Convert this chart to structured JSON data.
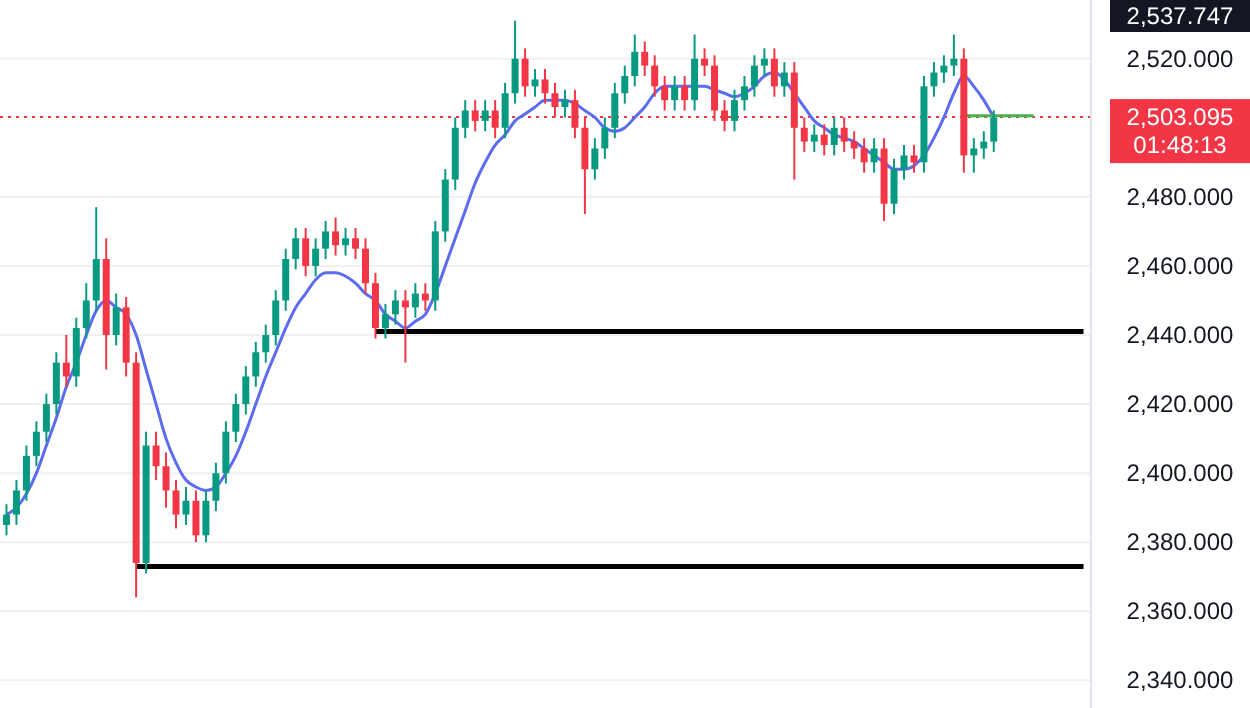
{
  "chart_data": {
    "type": "candlestick",
    "categories": [
      null,
      null,
      null,
      null,
      null,
      null,
      null,
      null,
      null,
      null,
      null,
      null,
      null,
      null,
      null,
      null,
      null,
      null,
      null,
      null,
      null,
      null,
      null,
      null,
      null,
      null,
      null,
      null,
      null,
      null,
      null,
      null,
      null,
      null,
      null,
      null,
      null,
      null,
      null,
      null,
      null,
      null,
      null,
      null,
      null,
      null,
      null,
      null,
      null,
      null,
      null,
      null,
      null,
      null,
      null,
      null,
      null,
      null,
      null,
      null,
      null,
      null,
      null,
      null,
      null,
      null,
      null,
      null,
      null,
      null,
      null,
      null,
      null,
      null,
      null,
      null,
      null,
      null,
      null,
      null,
      null,
      null,
      null,
      null,
      null,
      null,
      null,
      null,
      null,
      null,
      null,
      null,
      null,
      null,
      null,
      null,
      null,
      null,
      null,
      null,
      null,
      null,
      null,
      null,
      null,
      null,
      null,
      null,
      null
    ],
    "ohlc": [
      [
        2385,
        2391,
        2382,
        2388
      ],
      [
        2388,
        2398,
        2385,
        2395
      ],
      [
        2395,
        2408,
        2392,
        2405
      ],
      [
        2405,
        2415,
        2402,
        2412
      ],
      [
        2412,
        2423,
        2409,
        2420
      ],
      [
        2420,
        2435,
        2417,
        2432
      ],
      [
        2432,
        2440,
        2425,
        2428
      ],
      [
        2428,
        2445,
        2425,
        2442
      ],
      [
        2442,
        2455,
        2439,
        2450
      ],
      [
        2450,
        2477,
        2447,
        2462
      ],
      [
        2462,
        2468,
        2430,
        2440
      ],
      [
        2440,
        2452,
        2437,
        2448
      ],
      [
        2448,
        2451,
        2428,
        2432
      ],
      [
        2432,
        2435,
        2364,
        2374
      ],
      [
        2374,
        2412,
        2371,
        2408
      ],
      [
        2408,
        2412,
        2398,
        2402
      ],
      [
        2402,
        2406,
        2390,
        2395
      ],
      [
        2395,
        2398,
        2384,
        2388
      ],
      [
        2388,
        2396,
        2385,
        2392
      ],
      [
        2392,
        2395,
        2380,
        2382
      ],
      [
        2382,
        2395,
        2380,
        2392
      ],
      [
        2392,
        2403,
        2389,
        2400
      ],
      [
        2400,
        2415,
        2397,
        2412
      ],
      [
        2412,
        2423,
        2409,
        2420
      ],
      [
        2420,
        2431,
        2417,
        2428
      ],
      [
        2428,
        2438,
        2425,
        2435
      ],
      [
        2435,
        2443,
        2432,
        2440
      ],
      [
        2440,
        2453,
        2437,
        2450
      ],
      [
        2450,
        2465,
        2447,
        2462
      ],
      [
        2462,
        2471,
        2459,
        2468
      ],
      [
        2468,
        2471,
        2457,
        2460
      ],
      [
        2460,
        2468,
        2457,
        2465
      ],
      [
        2465,
        2473,
        2462,
        2470
      ],
      [
        2470,
        2474,
        2463,
        2466
      ],
      [
        2466,
        2471,
        2463,
        2468
      ],
      [
        2468,
        2471,
        2462,
        2465
      ],
      [
        2465,
        2468,
        2452,
        2455
      ],
      [
        2455,
        2458,
        2439,
        2442
      ],
      [
        2442,
        2449,
        2439,
        2446
      ],
      [
        2446,
        2453,
        2443,
        2450
      ],
      [
        2450,
        2453,
        2432,
        2448
      ],
      [
        2448,
        2455,
        2445,
        2452
      ],
      [
        2452,
        2455,
        2447,
        2450
      ],
      [
        2450,
        2473,
        2447,
        2470
      ],
      [
        2470,
        2488,
        2467,
        2485
      ],
      [
        2485,
        2503,
        2482,
        2500
      ],
      [
        2500,
        2508,
        2497,
        2505
      ],
      [
        2505,
        2508,
        2499,
        2502
      ],
      [
        2502,
        2508,
        2499,
        2505
      ],
      [
        2505,
        2508,
        2497,
        2500
      ],
      [
        2500,
        2513,
        2497,
        2510
      ],
      [
        2510,
        2531,
        2507,
        2520
      ],
      [
        2520,
        2523,
        2509,
        2512
      ],
      [
        2512,
        2517,
        2509,
        2514
      ],
      [
        2514,
        2517,
        2507,
        2510
      ],
      [
        2510,
        2513,
        2503,
        2506
      ],
      [
        2506,
        2511,
        2503,
        2508
      ],
      [
        2508,
        2511,
        2497,
        2500
      ],
      [
        2500,
        2503,
        2475,
        2488
      ],
      [
        2488,
        2497,
        2485,
        2494
      ],
      [
        2494,
        2503,
        2491,
        2500
      ],
      [
        2500,
        2513,
        2497,
        2510
      ],
      [
        2510,
        2518,
        2507,
        2515
      ],
      [
        2515,
        2527,
        2512,
        2522
      ],
      [
        2522,
        2525,
        2515,
        2518
      ],
      [
        2518,
        2521,
        2509,
        2512
      ],
      [
        2512,
        2515,
        2505,
        2508
      ],
      [
        2508,
        2515,
        2505,
        2512
      ],
      [
        2512,
        2515,
        2505,
        2508
      ],
      [
        2508,
        2527,
        2505,
        2520
      ],
      [
        2520,
        2523,
        2515,
        2518
      ],
      [
        2518,
        2521,
        2502,
        2505
      ],
      [
        2505,
        2508,
        2499,
        2502
      ],
      [
        2502,
        2511,
        2499,
        2508
      ],
      [
        2508,
        2515,
        2505,
        2512
      ],
      [
        2512,
        2521,
        2509,
        2518
      ],
      [
        2518,
        2523,
        2515,
        2520
      ],
      [
        2520,
        2523,
        2509,
        2512
      ],
      [
        2512,
        2519,
        2509,
        2516
      ],
      [
        2516,
        2519,
        2485,
        2500
      ],
      [
        2500,
        2503,
        2493,
        2496
      ],
      [
        2496,
        2501,
        2493,
        2498
      ],
      [
        2498,
        2501,
        2492,
        2495
      ],
      [
        2495,
        2503,
        2492,
        2500
      ],
      [
        2500,
        2503,
        2493,
        2496
      ],
      [
        2496,
        2499,
        2491,
        2494
      ],
      [
        2494,
        2497,
        2487,
        2490
      ],
      [
        2490,
        2497,
        2487,
        2494
      ],
      [
        2494,
        2497,
        2473,
        2478
      ],
      [
        2478,
        2491,
        2475,
        2488
      ],
      [
        2488,
        2495,
        2485,
        2492
      ],
      [
        2492,
        2495,
        2487,
        2490
      ],
      [
        2490,
        2515,
        2487,
        2512
      ],
      [
        2512,
        2519,
        2509,
        2516
      ],
      [
        2516,
        2521,
        2513,
        2518
      ],
      [
        2518,
        2527,
        2515,
        2520
      ],
      [
        2520,
        2523,
        2487,
        2492
      ],
      [
        2492,
        2497,
        2487,
        2494
      ],
      [
        2494,
        2499,
        2491,
        2496
      ],
      [
        2496,
        2505,
        2493,
        2503
      ],
      null,
      null,
      null,
      null,
      null,
      null,
      null,
      null,
      null
    ],
    "colors": [
      "#089981",
      "#089981",
      "#089981",
      "#089981",
      "#089981",
      "#089981",
      "#f23645",
      "#089981",
      "#089981",
      "#089981",
      "#f23645",
      "#089981",
      "#f23645",
      "#f23645",
      "#089981",
      "#f23645",
      "#f23645",
      "#f23645",
      "#089981",
      "#f23645",
      "#089981",
      "#089981",
      "#089981",
      "#089981",
      "#089981",
      "#089981",
      "#089981",
      "#089981",
      "#089981",
      "#089981",
      "#f23645",
      "#089981",
      "#089981",
      "#f23645",
      "#089981",
      "#f23645",
      "#f23645",
      "#f23645",
      "#089981",
      "#089981",
      "#f23645",
      "#089981",
      "#f23645",
      "#089981",
      "#089981",
      "#089981",
      "#089981",
      "#f23645",
      "#089981",
      "#f23645",
      "#089981",
      "#089981",
      "#f23645",
      "#089981",
      "#f23645",
      "#f23645",
      "#089981",
      "#f23645",
      "#f23645",
      "#089981",
      "#089981",
      "#089981",
      "#089981",
      "#089981",
      "#f23645",
      "#f23645",
      "#f23645",
      "#089981",
      "#f23645",
      "#089981",
      "#f23645",
      "#f23645",
      "#f23645",
      "#089981",
      "#089981",
      "#089981",
      "#089981",
      "#f23645",
      "#089981",
      "#f23645",
      "#f23645",
      "#089981",
      "#f23645",
      "#089981",
      "#f23645",
      "#f23645",
      "#f23645",
      "#089981",
      "#f23645",
      "#089981",
      "#089981",
      "#f23645",
      "#089981",
      "#089981",
      "#089981",
      "#089981",
      "#f23645",
      "#089981",
      "#089981",
      "#089981",
      null,
      null,
      null,
      null,
      null,
      null,
      null,
      null,
      null
    ],
    "series": [
      {
        "type": "line",
        "color": "#5b6cf0",
        "values": [
          2388,
          2390,
          2394,
          2400,
          2408,
          2416,
          2425,
          2432,
          2440,
          2447,
          2450,
          2448,
          2446,
          2440,
          2430,
          2420,
          2410,
          2403,
          2398,
          2396,
          2395,
          2396,
          2400,
          2405,
          2412,
          2420,
          2428,
          2435,
          2442,
          2448,
          2452,
          2456,
          2458,
          2458,
          2457,
          2455,
          2452,
          2450,
          2446,
          2444,
          2442,
          2444,
          2446,
          2452,
          2460,
          2468,
          2476,
          2484,
          2490,
          2495,
          2498,
          2502,
          2504,
          2506,
          2508,
          2508,
          2508,
          2507,
          2505,
          2503,
          2500,
          2499,
          2500,
          2503,
          2506,
          2510,
          2512,
          2512,
          2512,
          2512,
          2512,
          2511,
          2510,
          2509,
          2510,
          2512,
          2515,
          2516,
          2514,
          2510,
          2506,
          2502,
          2500,
          2498,
          2497,
          2496,
          2494,
          2492,
          2490,
          2488,
          2488,
          2489,
          2492,
          2497,
          2503,
          2510,
          2515,
          2512,
          2508,
          2503,
          null,
          null,
          null,
          null,
          null,
          null,
          null,
          null,
          null
        ]
      },
      {
        "type": "line",
        "color": "#000000",
        "values": [
          null,
          null,
          null,
          null,
          null,
          null,
          null,
          null,
          null,
          null,
          null,
          null,
          null,
          null,
          null,
          null,
          null,
          null,
          null,
          null,
          null,
          null,
          null,
          null,
          null,
          null,
          null,
          null,
          null,
          null,
          null,
          null,
          null,
          null,
          null,
          null,
          null,
          2441,
          2441,
          2441,
          2441,
          2441,
          2441,
          2441,
          2441,
          2441,
          2441,
          2441,
          2441,
          2441,
          2441,
          2441,
          2441,
          2441,
          2441,
          2441,
          2441,
          2441,
          2441,
          2441,
          2441,
          2441,
          2441,
          2441,
          2441,
          2441,
          2441,
          2441,
          2441,
          2441,
          2441,
          2441,
          2441,
          2441,
          2441,
          2441,
          2441,
          2441,
          2441,
          2441,
          2441,
          2441,
          2441,
          2441,
          2441,
          2441,
          2441,
          2441,
          2441,
          2441,
          2441,
          2441,
          2441,
          2441,
          2441,
          2441,
          2441,
          2441,
          2441,
          2441,
          2441,
          2441,
          2441,
          2441,
          2441,
          2441,
          2441,
          2441,
          2441
        ]
      },
      {
        "type": "line",
        "color": "#000000",
        "values": [
          null,
          null,
          null,
          null,
          null,
          null,
          null,
          null,
          null,
          null,
          null,
          null,
          null,
          2373,
          2373,
          2373,
          2373,
          2373,
          2373,
          2373,
          2373,
          2373,
          2373,
          2373,
          2373,
          2373,
          2373,
          2373,
          2373,
          2373,
          2373,
          2373,
          2373,
          2373,
          2373,
          2373,
          2373,
          2373,
          2373,
          2373,
          2373,
          2373,
          2373,
          2373,
          2373,
          2373,
          2373,
          2373,
          2373,
          2373,
          2373,
          2373,
          2373,
          2373,
          2373,
          2373,
          2373,
          2373,
          2373,
          2373,
          2373,
          2373,
          2373,
          2373,
          2373,
          2373,
          2373,
          2373,
          2373,
          2373,
          2373,
          2373,
          2373,
          2373,
          2373,
          2373,
          2373,
          2373,
          2373,
          2373,
          2373,
          2373,
          2373,
          2373,
          2373,
          2373,
          2373,
          2373,
          2373,
          2373,
          2373,
          2373,
          2373,
          2373,
          2373,
          2373,
          2373,
          2373,
          2373,
          2373,
          2373,
          2373,
          2373,
          2373,
          2373,
          2373,
          2373,
          2373,
          2373
        ]
      },
      {
        "type": "line",
        "color": "#4caf50",
        "values": [
          null,
          null,
          null,
          null,
          null,
          null,
          null,
          null,
          null,
          null,
          null,
          null,
          null,
          null,
          null,
          null,
          null,
          null,
          null,
          null,
          null,
          null,
          null,
          null,
          null,
          null,
          null,
          null,
          null,
          null,
          null,
          null,
          null,
          null,
          null,
          null,
          null,
          null,
          null,
          null,
          null,
          null,
          null,
          null,
          null,
          null,
          null,
          null,
          null,
          null,
          null,
          null,
          null,
          null,
          null,
          null,
          null,
          null,
          null,
          null,
          null,
          null,
          null,
          null,
          null,
          null,
          null,
          null,
          null,
          null,
          null,
          null,
          null,
          null,
          null,
          null,
          null,
          null,
          null,
          null,
          null,
          null,
          null,
          null,
          null,
          null,
          null,
          null,
          null,
          null,
          null,
          null,
          null,
          null,
          null,
          null,
          2503.5,
          2503.5,
          2503.5,
          2503.5,
          2503.5,
          2503.5,
          2503.5,
          2503.5,
          null,
          null,
          null,
          null,
          null
        ]
      }
    ],
    "ylim": [
      2332,
      2537
    ],
    "yticks": [
      {
        "value": 2340,
        "label": "2,340.000"
      },
      {
        "value": 2360,
        "label": "2,360.000"
      },
      {
        "value": 2380,
        "label": "2,380.000"
      },
      {
        "value": 2400,
        "label": "2,400.000"
      },
      {
        "value": 2420,
        "label": "2,420.000"
      },
      {
        "value": 2440,
        "label": "2,440.000"
      },
      {
        "value": 2460,
        "label": "2,460.000"
      },
      {
        "value": 2480,
        "label": "2,480.000"
      },
      {
        "value": 2520,
        "label": "2,520.000"
      }
    ],
    "grid": "y",
    "ref_lines": [
      {
        "axis": "y",
        "value": 2503.095,
        "label": "2,503.095",
        "color": "#f23645",
        "line_style": "dotted"
      }
    ],
    "annotations": [
      "01:48:13",
      "2,537.747"
    ]
  }
}
